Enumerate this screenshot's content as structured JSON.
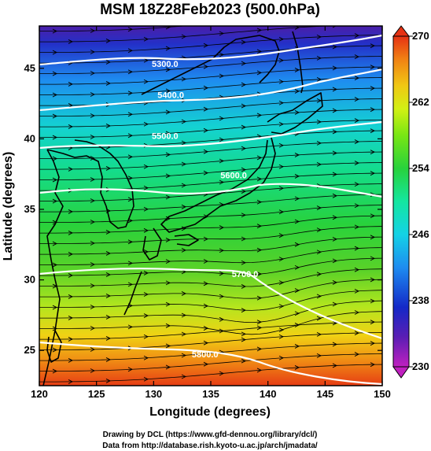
{
  "title": "MSM 18Z28Feb2023 (500.0hPa)",
  "xlabel": "Longitude (degrees)",
  "ylabel": "Latitude  (degrees)",
  "credits": {
    "line1": "Drawing by DCL (https://www.gfd-dennou.org/library/dcl/)",
    "line2": "Data from http://database.rish.kyoto-u.ac.jp/arch/jmadata/"
  },
  "chart_data": {
    "type": "heatmap",
    "xlim": [
      120,
      150
    ],
    "ylim": [
      22.5,
      48
    ],
    "x_ticks": [
      120,
      125,
      130,
      135,
      140,
      145,
      150
    ],
    "y_ticks": [
      25,
      30,
      35,
      40,
      45
    ],
    "colorbar": {
      "min": 230,
      "max": 270,
      "labels": [
        230,
        238,
        246,
        254,
        262,
        270
      ],
      "colors": [
        "#c020c0",
        "#5a1eb4",
        "#1428c8",
        "#1e8cf0",
        "#14d2e6",
        "#14e6a0",
        "#28d23c",
        "#78e614",
        "#d2f014",
        "#f0c814",
        "#f08214",
        "#e63214"
      ]
    },
    "contours": [
      {
        "label": "5300.0",
        "lon": 131,
        "lat": 45.1
      },
      {
        "label": "5400.0",
        "lon": 131.5,
        "lat": 42.9
      },
      {
        "label": "5500.0",
        "lon": 131,
        "lat": 40.0
      },
      {
        "label": "5600.0",
        "lon": 137,
        "lat": 37.2
      },
      {
        "label": "5700.0",
        "lon": 138,
        "lat": 30.2
      },
      {
        "label": "5800.0",
        "lon": 134.5,
        "lat": 24.5
      }
    ]
  }
}
